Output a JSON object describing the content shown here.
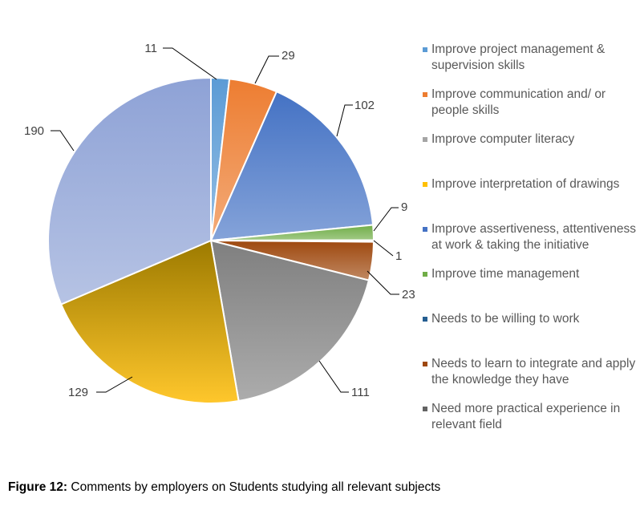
{
  "chart_data": {
    "type": "pie",
    "title": "",
    "slices": [
      {
        "value": 11,
        "color": "#5b9bd5"
      },
      {
        "value": 29,
        "color": "#ed7d31"
      },
      {
        "value": 102,
        "color": "#4472c4"
      },
      {
        "value": 9,
        "color": "#70ad47"
      },
      {
        "value": 1,
        "color": "#264478"
      },
      {
        "value": 23,
        "color": "#9e480e"
      },
      {
        "value": 111,
        "color": "#7f7f7f"
      },
      {
        "value": 129,
        "color": "#e0a800"
      },
      {
        "value": 190,
        "color": "#8ea2d6"
      }
    ],
    "start": "top",
    "direction": "clockwise",
    "legend_position": "right",
    "legend": [
      {
        "label": "Improve project management & supervision skills",
        "color": "#5b9bd5"
      },
      {
        "label": "Improve communication and/ or people skills",
        "color": "#ed7d31"
      },
      {
        "label": "Improve computer literacy",
        "color": "#a5a5a5"
      },
      {
        "label": "Improve interpretation of drawings",
        "color": "#ffc000"
      },
      {
        "label": "Improve assertiveness, attentiveness at work & taking the initiative",
        "color": "#4472c4"
      },
      {
        "label": "Improve time management",
        "color": "#70ad47"
      },
      {
        "label": "Needs to be willing to work",
        "color": "#255e91"
      },
      {
        "label": "Needs to learn to integrate and apply the knowledge they have",
        "color": "#9e480e"
      },
      {
        "label": "Need more practical experience in relevant field",
        "color": "#636363"
      }
    ]
  },
  "caption": {
    "label": "Figure 12:",
    "text": " Comments by employers on Students studying all relevant subjects"
  }
}
